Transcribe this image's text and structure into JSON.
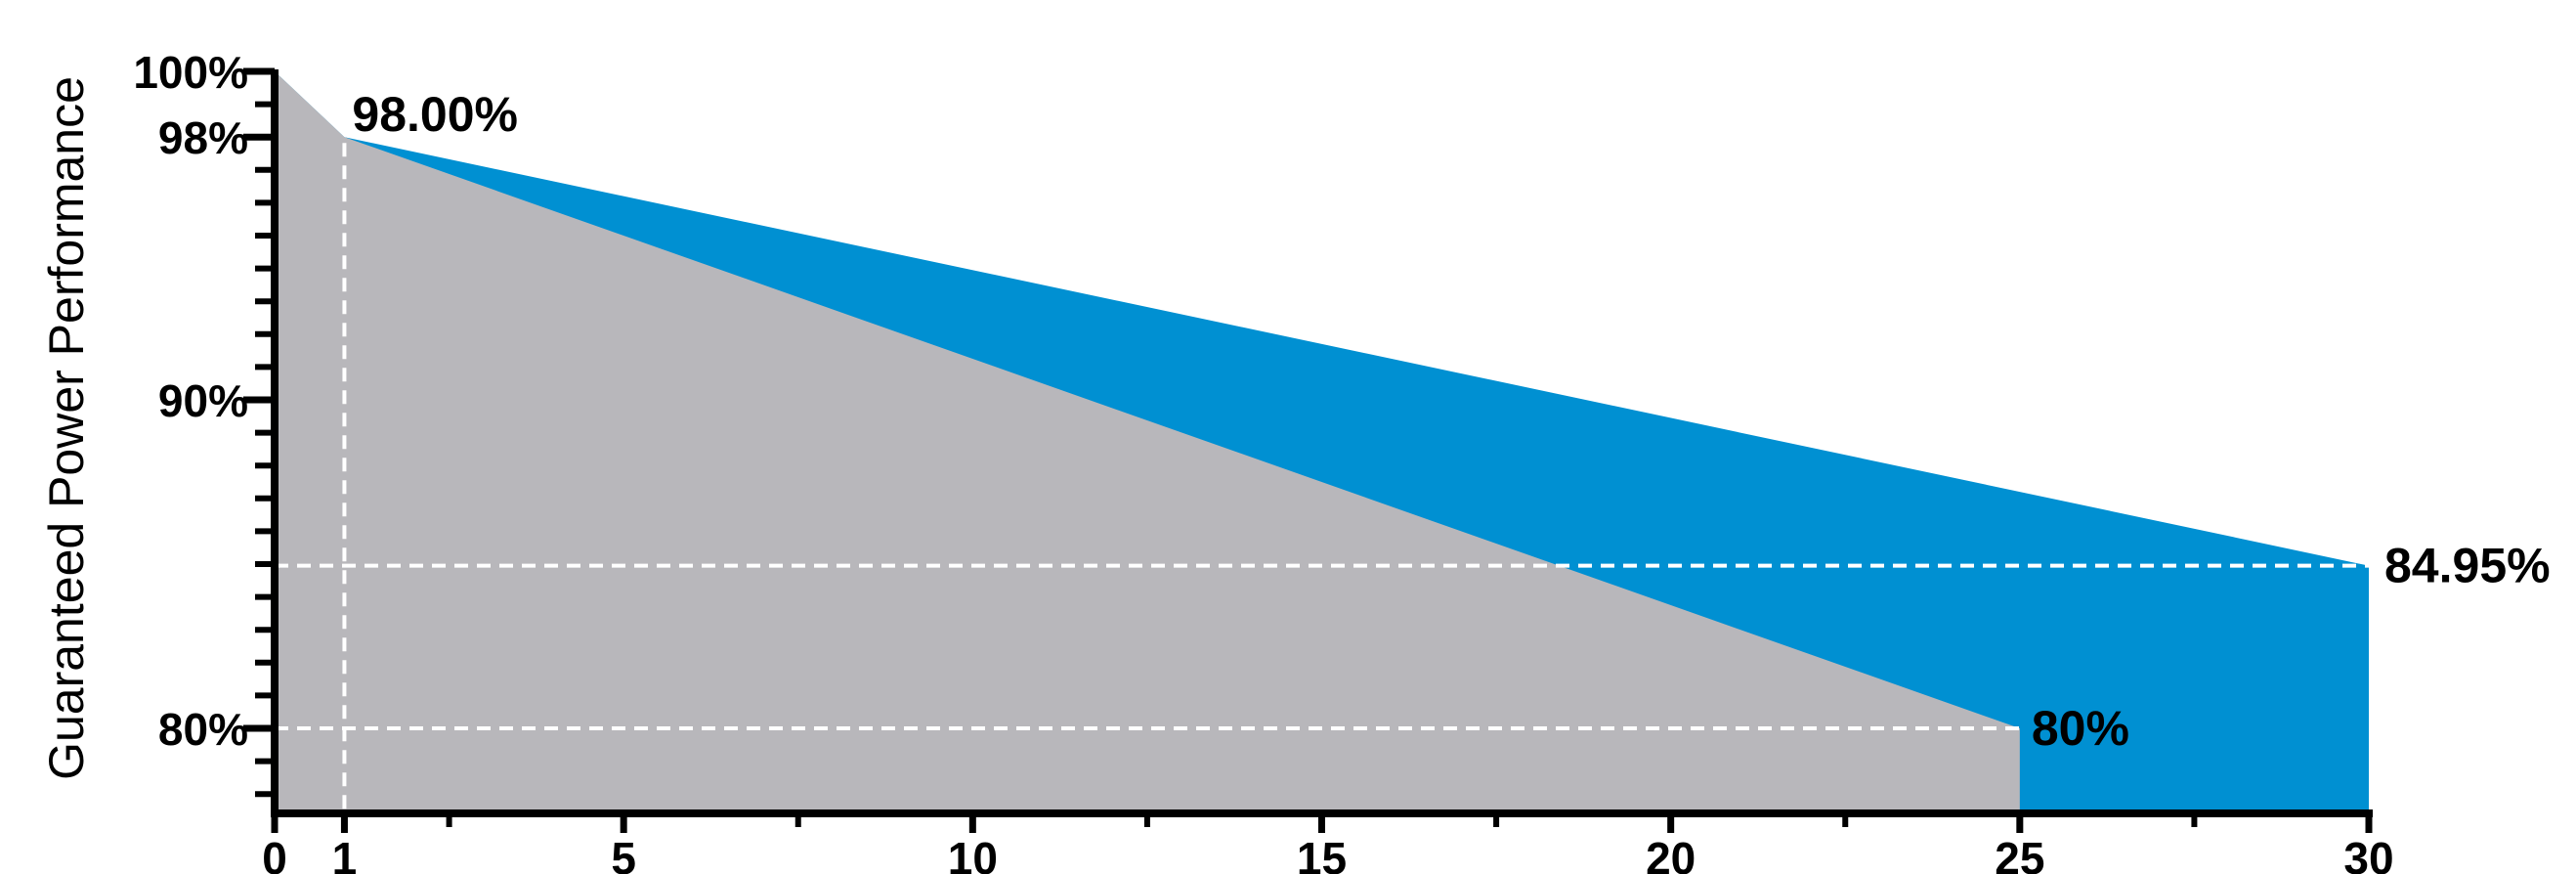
{
  "chart_data": {
    "type": "area",
    "title": "",
    "xlabel": "",
    "ylabel": "Guaranteed Power Performance",
    "xlim": [
      0,
      30
    ],
    "ylim": [
      77.5,
      100
    ],
    "grid": false,
    "series": [
      {
        "x": [
          0,
          1,
          30
        ],
        "y": [
          100,
          98,
          84.95
        ],
        "color": "#0090D2"
      },
      {
        "x": [
          0,
          1,
          25
        ],
        "y": [
          100,
          98,
          80
        ],
        "color": "#B8B7BB"
      }
    ],
    "x_ticks": [
      {
        "value": 0,
        "label": "0"
      },
      {
        "value": 1,
        "label": "1"
      },
      {
        "value": 5,
        "label": "5"
      },
      {
        "value": 10,
        "label": "10"
      },
      {
        "value": 15,
        "label": "15"
      },
      {
        "value": 20,
        "label": "20"
      },
      {
        "value": 25,
        "label": "25"
      },
      {
        "value": 30,
        "label": "30"
      }
    ],
    "y_ticks": [
      {
        "value": 100,
        "label": "100%"
      },
      {
        "value": 98,
        "label": "98%"
      },
      {
        "value": 90,
        "label": "90%"
      },
      {
        "value": 80,
        "label": "80%"
      }
    ],
    "reference_lines": [
      {
        "axis": "x",
        "value": 1
      },
      {
        "axis": "y",
        "value": 84.95,
        "x_end": 30
      },
      {
        "axis": "y",
        "value": 80,
        "x_end": 25
      }
    ],
    "annotations": [
      {
        "text": "98.00%",
        "x": 1,
        "y": 98
      },
      {
        "text": "84.95%",
        "x": 30,
        "y": 84.95
      },
      {
        "text": "80%",
        "x": 25,
        "y": 80
      }
    ]
  }
}
